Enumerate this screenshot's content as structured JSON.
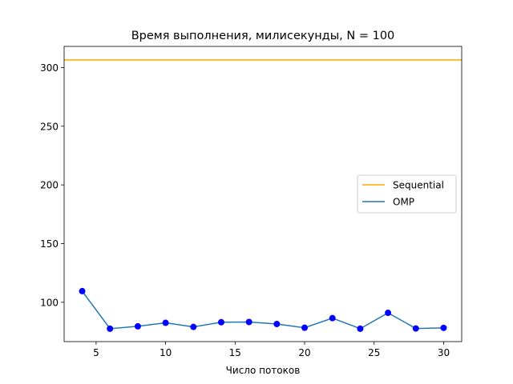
{
  "chart_data": {
    "type": "line",
    "title": "Время выполнения, милисекунды, N = 100",
    "xlabel": "Число потоков",
    "ylabel": "",
    "xlim": [
      2.7,
      31.3
    ],
    "ylim": [
      66.5,
      318
    ],
    "xticks": [
      5,
      10,
      15,
      20,
      25,
      30
    ],
    "yticks": [
      100,
      150,
      200,
      250,
      300
    ],
    "grid": false,
    "legend_position": "center-right",
    "series": [
      {
        "name": "Sequential",
        "kind": "hline",
        "color": "#ffa500",
        "y": 306.5
      },
      {
        "name": "OMP",
        "kind": "line",
        "color": "#1f77b4",
        "marker_color": "#0000ff",
        "x": [
          4,
          6,
          8,
          10,
          12,
          14,
          16,
          18,
          20,
          22,
          24,
          26,
          28,
          30
        ],
        "y": [
          109.5,
          77.5,
          79.5,
          82.5,
          79,
          83,
          83.2,
          81.5,
          78.3,
          86.5,
          77.5,
          91,
          77.7,
          78.2
        ]
      }
    ]
  }
}
